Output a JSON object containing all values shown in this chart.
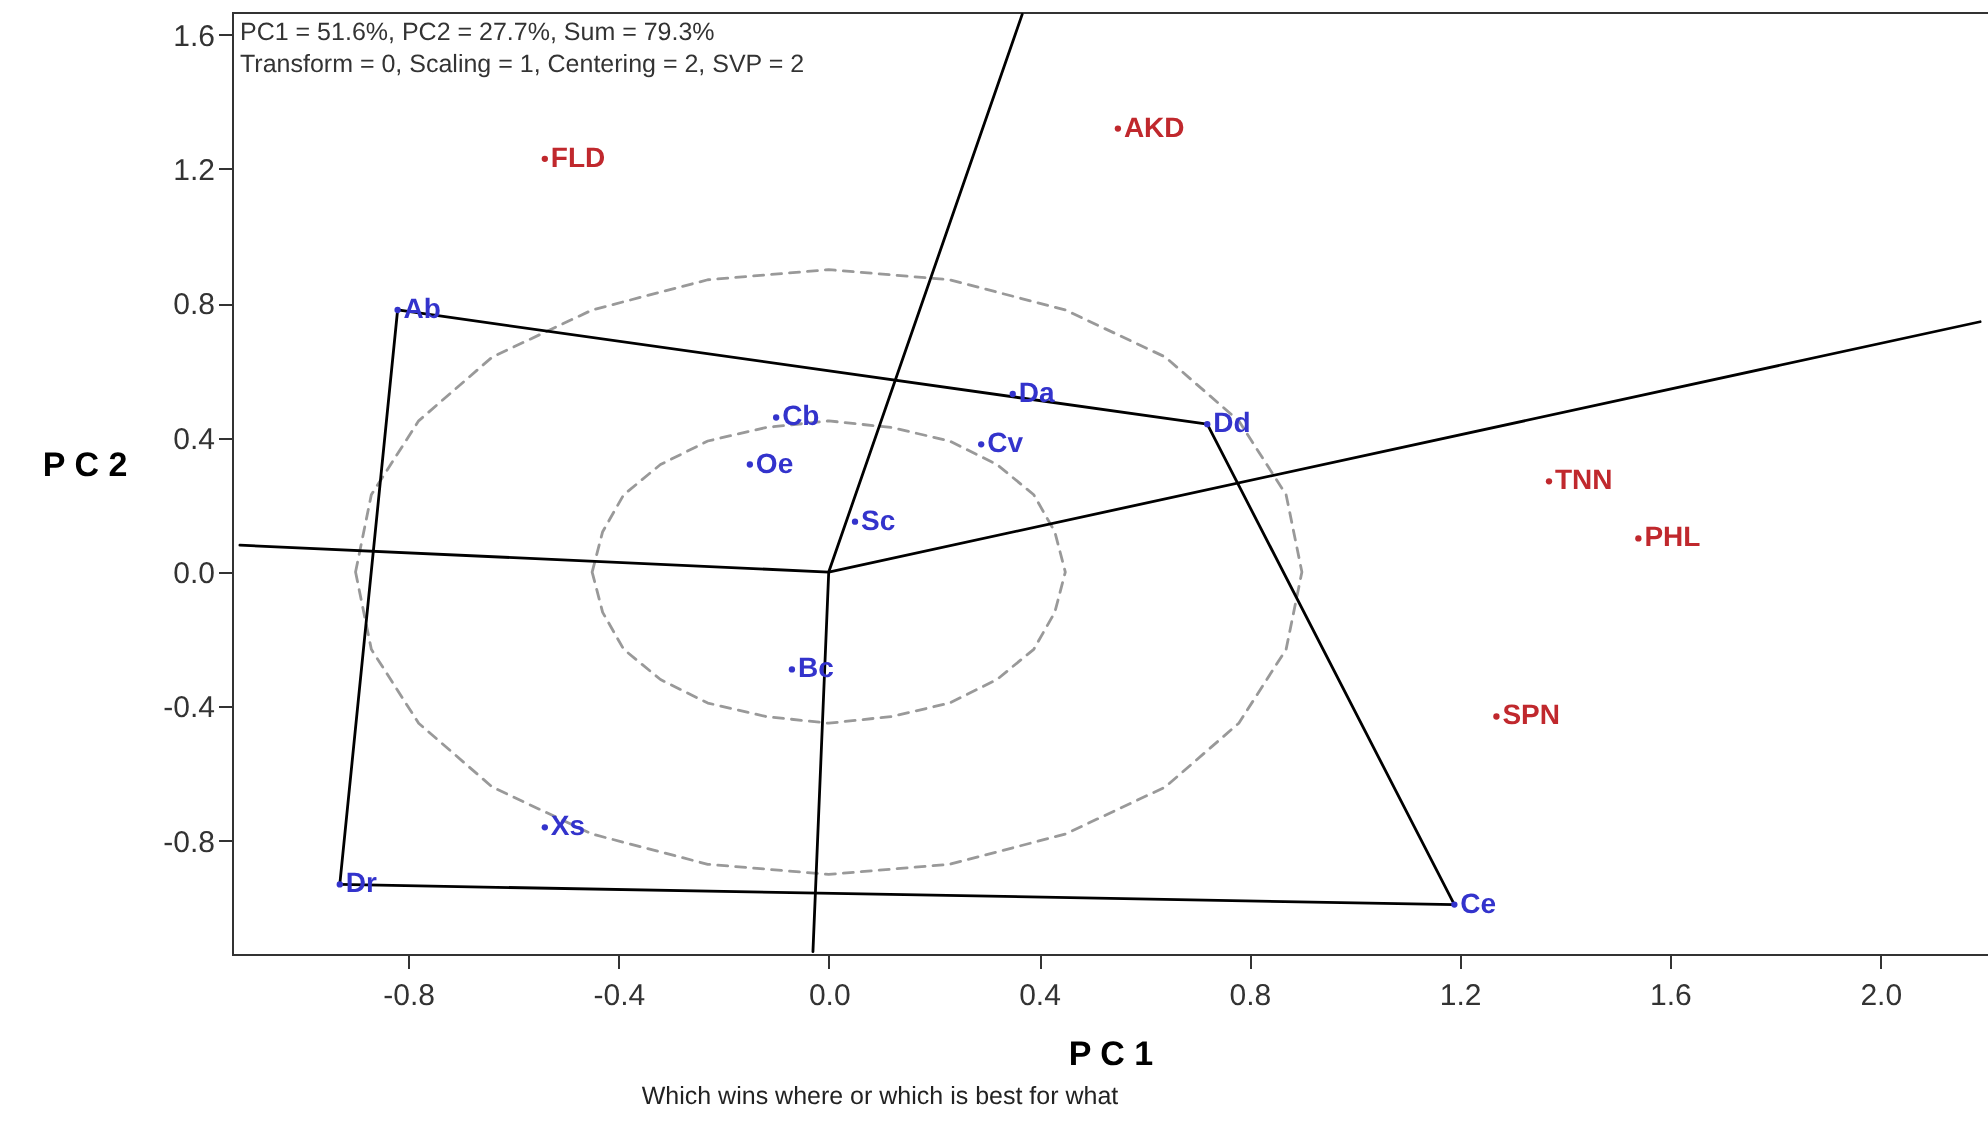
{
  "chart_data": {
    "type": "scatter",
    "xlabel": "P C 1",
    "ylabel": "P C 2",
    "annotations": [
      "PC1 = 51.6%, PC2 = 27.7%, Sum = 79.3%",
      "Transform = 0, Scaling = 1, Centering = 2, SVP = 2",
      "Which wins where or which is best for what"
    ],
    "xlim": [
      -1.135,
      2.205
    ],
    "ylim": [
      -1.137,
      1.667
    ],
    "xticks": [
      -0.8,
      -0.4,
      {
        "value": 0,
        "label": "0.0"
      },
      0.4,
      0.8,
      1.2,
      1.6,
      {
        "value": 2,
        "label": "2.0"
      }
    ],
    "yticks": [
      -0.8,
      -0.4,
      {
        "value": 0,
        "label": "0.0"
      },
      0.4,
      0.8,
      1.2,
      1.6
    ],
    "grid": false,
    "marker": "circle",
    "series": [
      {
        "type": "line",
        "marker": "none",
        "line_style": "dashed",
        "color": "#999999",
        "x": [
          -0.9,
          -0.87,
          -0.78,
          -0.64,
          -0.45,
          -0.23,
          0,
          0.23,
          0.45,
          0.64,
          0.78,
          0.87,
          0.9,
          null,
          -0.9,
          -0.87,
          -0.78,
          -0.64,
          -0.45,
          -0.23,
          0,
          0.23,
          0.45,
          0.64,
          0.78,
          0.87,
          0.9
        ],
        "values": [
          0,
          0.23,
          0.45,
          0.64,
          0.78,
          0.87,
          0.9,
          0.87,
          0.78,
          0.64,
          0.45,
          0.23,
          0,
          null,
          0,
          -0.23,
          -0.45,
          -0.64,
          -0.78,
          -0.87,
          -0.9,
          -0.87,
          -0.78,
          -0.64,
          -0.45,
          -0.23,
          0
        ]
      },
      {
        "type": "line",
        "marker": "none",
        "line_style": "dashed",
        "color": "#999999",
        "x": [
          -0.45,
          -0.43,
          -0.39,
          -0.32,
          -0.23,
          -0.12,
          0,
          0.12,
          0.23,
          0.32,
          0.39,
          0.43,
          0.45,
          null,
          -0.45,
          -0.43,
          -0.39,
          -0.32,
          -0.23,
          -0.12,
          0,
          0.12,
          0.23,
          0.32,
          0.39,
          0.43,
          0.45
        ],
        "values": [
          0,
          0.12,
          0.23,
          0.32,
          0.39,
          0.43,
          0.45,
          0.43,
          0.39,
          0.32,
          0.23,
          0.12,
          0,
          null,
          0,
          -0.12,
          -0.23,
          -0.32,
          -0.39,
          -0.43,
          -0.45,
          -0.43,
          -0.39,
          -0.32,
          -0.23,
          -0.12,
          0
        ]
      },
      {
        "type": "line",
        "marker": "none",
        "line_style": "solid",
        "color": "#000000",
        "x": [
          -0.93,
          -0.82,
          0.72,
          1.19
        ],
        "values": [
          -0.93,
          0.78,
          0.44,
          -0.99
        ]
      },
      {
        "type": "line",
        "marker": "none",
        "line_style": "solid",
        "color": "#000000",
        "x": [
          -0.93,
          1.19
        ],
        "values": [
          -0.93,
          -0.99
        ]
      },
      {
        "type": "line",
        "marker": "none",
        "line_style": "solid",
        "color": "#000000",
        "x": [
          -1.12,
          0,
          2.19
        ],
        "values": [
          0.08,
          0,
          0.745
        ]
      },
      {
        "type": "line",
        "marker": "none",
        "line_style": "solid",
        "color": "#000000",
        "x": [
          -0.03,
          0,
          0.368
        ],
        "values": [
          -1.13,
          0,
          1.66
        ]
      },
      {
        "name": "Ab",
        "color": "#3333cc",
        "x": [
          -0.82
        ],
        "values": [
          0.78
        ]
      },
      {
        "name": "Dd",
        "color": "#3333cc",
        "x": [
          0.72
        ],
        "values": [
          0.44
        ]
      },
      {
        "name": "Ce",
        "color": "#3333cc",
        "x": [
          1.19
        ],
        "values": [
          -0.99
        ]
      },
      {
        "name": "Dr",
        "color": "#3333cc",
        "x": [
          -0.93
        ],
        "values": [
          -0.93
        ]
      },
      {
        "name": "Da",
        "color": "#3333cc",
        "x": [
          0.35
        ],
        "values": [
          0.53
        ]
      },
      {
        "name": "Cb",
        "color": "#3333cc",
        "x": [
          -0.1
        ],
        "values": [
          0.46
        ]
      },
      {
        "name": "Cv",
        "color": "#3333cc",
        "x": [
          0.29
        ],
        "values": [
          0.38
        ]
      },
      {
        "name": "Oe",
        "color": "#3333cc",
        "x": [
          -0.15
        ],
        "values": [
          0.32
        ]
      },
      {
        "name": "Sc",
        "color": "#3333cc",
        "x": [
          0.05
        ],
        "values": [
          0.15
        ]
      },
      {
        "name": "Bc",
        "color": "#3333cc",
        "x": [
          -0.07
        ],
        "values": [
          -0.29
        ]
      },
      {
        "name": "Xs",
        "color": "#3333cc",
        "x": [
          -0.54
        ],
        "values": [
          -0.76
        ]
      },
      {
        "name": "FLD",
        "color": "#c0282d",
        "x": [
          -0.54
        ],
        "values": [
          1.23
        ]
      },
      {
        "name": "AKD",
        "color": "#c0282d",
        "x": [
          0.55
        ],
        "values": [
          1.32
        ]
      },
      {
        "name": "TNN",
        "color": "#c0282d",
        "x": [
          1.37
        ],
        "values": [
          0.27
        ]
      },
      {
        "name": "PHL",
        "color": "#c0282d",
        "x": [
          1.54
        ],
        "values": [
          0.1
        ]
      },
      {
        "name": "SPN",
        "color": "#c0282d",
        "x": [
          1.27
        ],
        "values": [
          -0.43
        ]
      }
    ]
  }
}
